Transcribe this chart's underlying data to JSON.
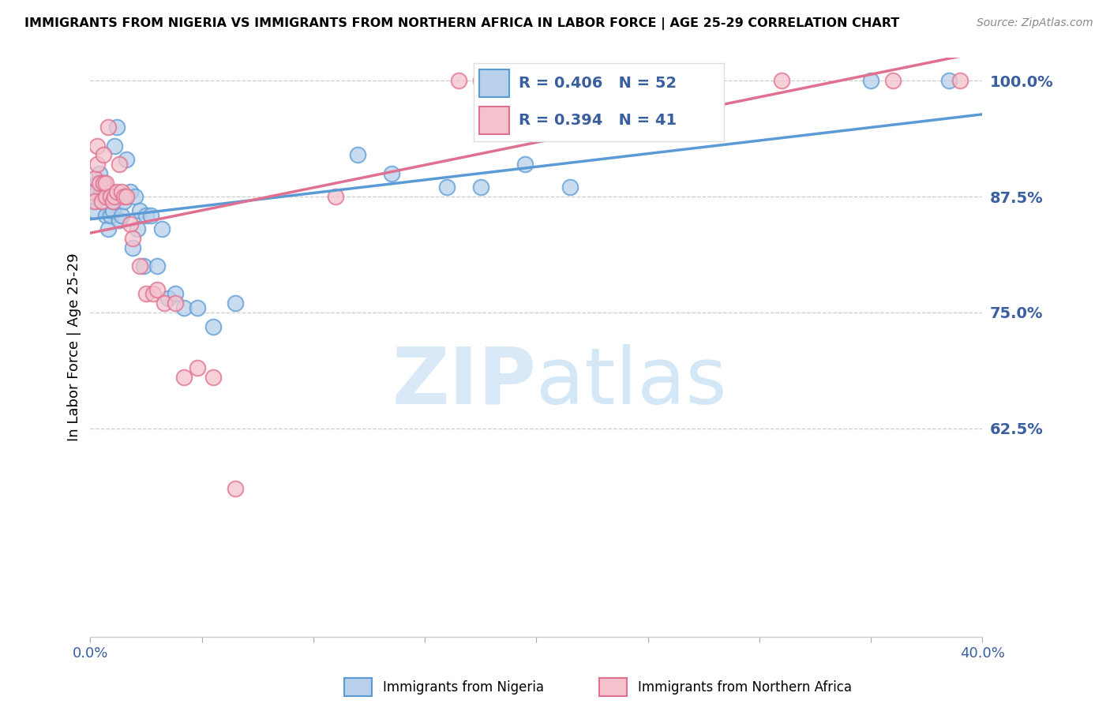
{
  "title": "IMMIGRANTS FROM NIGERIA VS IMMIGRANTS FROM NORTHERN AFRICA IN LABOR FORCE | AGE 25-29 CORRELATION CHART",
  "source": "Source: ZipAtlas.com",
  "ylabel": "In Labor Force | Age 25-29",
  "legend_label1": "Immigrants from Nigeria",
  "legend_label2": "Immigrants from Northern Africa",
  "R1": 0.406,
  "N1": 52,
  "R2": 0.394,
  "N2": 41,
  "color1_fill": "#b8d0ea",
  "color1_edge": "#5b9bd5",
  "color2_fill": "#f4c2cc",
  "color2_edge": "#e07090",
  "color1_line": "#5b9bd5",
  "color2_line": "#e07090",
  "xlim": [
    0.0,
    0.4
  ],
  "ylim": [
    0.4,
    1.025
  ],
  "yticks": [
    0.625,
    0.75,
    0.875,
    1.0
  ],
  "ytick_labels": [
    "62.5%",
    "75.0%",
    "87.5%",
    "100.0%"
  ],
  "xticks": [
    0.0,
    0.05,
    0.1,
    0.15,
    0.2,
    0.25,
    0.3,
    0.35,
    0.4
  ],
  "xtick_labels": [
    "0.0%",
    "",
    "",
    "",
    "",
    "",
    "",
    "",
    "40.0%"
  ],
  "watermark_zip": "ZIP",
  "watermark_atlas": "atlas",
  "nigeria_x": [
    0.001,
    0.001,
    0.002,
    0.002,
    0.003,
    0.003,
    0.004,
    0.004,
    0.005,
    0.005,
    0.005,
    0.006,
    0.006,
    0.007,
    0.007,
    0.007,
    0.008,
    0.008,
    0.009,
    0.009,
    0.01,
    0.01,
    0.011,
    0.012,
    0.013,
    0.014,
    0.015,
    0.016,
    0.018,
    0.019,
    0.02,
    0.021,
    0.022,
    0.024,
    0.025,
    0.027,
    0.03,
    0.032,
    0.035,
    0.038,
    0.042,
    0.048,
    0.055,
    0.065,
    0.12,
    0.135,
    0.16,
    0.175,
    0.195,
    0.215,
    0.35,
    0.385
  ],
  "nigeria_y": [
    0.875,
    0.87,
    0.88,
    0.86,
    0.89,
    0.88,
    0.875,
    0.9,
    0.875,
    0.88,
    0.87,
    0.875,
    0.89,
    0.875,
    0.88,
    0.855,
    0.84,
    0.875,
    0.855,
    0.88,
    0.86,
    0.87,
    0.93,
    0.95,
    0.85,
    0.855,
    0.87,
    0.915,
    0.88,
    0.82,
    0.875,
    0.84,
    0.86,
    0.8,
    0.855,
    0.855,
    0.8,
    0.84,
    0.765,
    0.77,
    0.755,
    0.755,
    0.735,
    0.76,
    0.92,
    0.9,
    0.885,
    0.885,
    0.91,
    0.885,
    1.0,
    1.0
  ],
  "north_africa_x": [
    0.001,
    0.002,
    0.002,
    0.003,
    0.003,
    0.004,
    0.005,
    0.006,
    0.006,
    0.007,
    0.007,
    0.008,
    0.009,
    0.01,
    0.011,
    0.012,
    0.013,
    0.014,
    0.015,
    0.016,
    0.018,
    0.019,
    0.022,
    0.025,
    0.028,
    0.03,
    0.033,
    0.038,
    0.042,
    0.048,
    0.055,
    0.065,
    0.11,
    0.165,
    0.175,
    0.195,
    0.215,
    0.24,
    0.31,
    0.36,
    0.39
  ],
  "north_africa_y": [
    0.88,
    0.87,
    0.895,
    0.91,
    0.93,
    0.89,
    0.87,
    0.92,
    0.89,
    0.875,
    0.89,
    0.95,
    0.875,
    0.87,
    0.875,
    0.88,
    0.91,
    0.88,
    0.875,
    0.875,
    0.845,
    0.83,
    0.8,
    0.77,
    0.77,
    0.775,
    0.76,
    0.76,
    0.68,
    0.69,
    0.68,
    0.56,
    0.875,
    1.0,
    1.0,
    1.0,
    1.0,
    1.0,
    1.0,
    1.0,
    1.0
  ]
}
